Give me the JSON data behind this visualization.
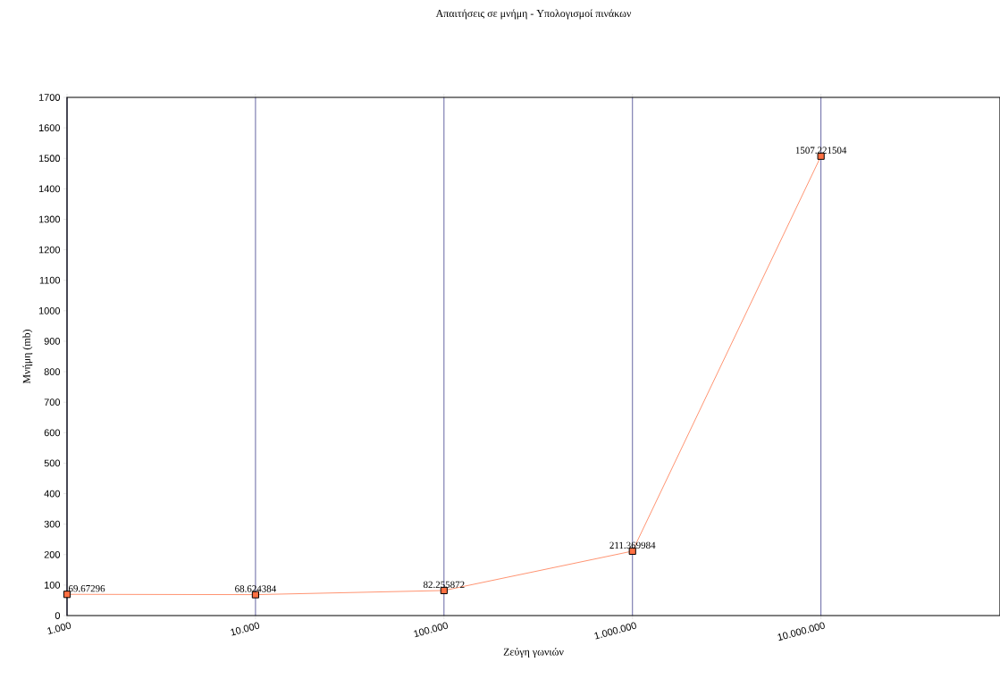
{
  "chart_data": {
    "type": "line",
    "title": "Απαιτήσεις σε μνήμη - Υπολογισμοί πινάκων",
    "xlabel": "Ζεύγη γωνιών",
    "ylabel": "Μνήμη (mb)",
    "categories": [
      "1.000",
      "10.000",
      "100.000",
      "1.000.000",
      "10.000.000"
    ],
    "series": [
      {
        "color": "#ff7043",
        "values": [
          69.67296,
          68.624384,
          82.255872,
          211.369984,
          1507.221504
        ]
      }
    ],
    "ylim": [
      0,
      1700
    ],
    "yticks": [
      0,
      100,
      200,
      300,
      400,
      500,
      600,
      700,
      800,
      900,
      1000,
      1100,
      1200,
      1300,
      1400,
      1500,
      1600,
      1700
    ],
    "grid": "x",
    "marker": "square",
    "line_style": "solid",
    "data_labels": true
  }
}
